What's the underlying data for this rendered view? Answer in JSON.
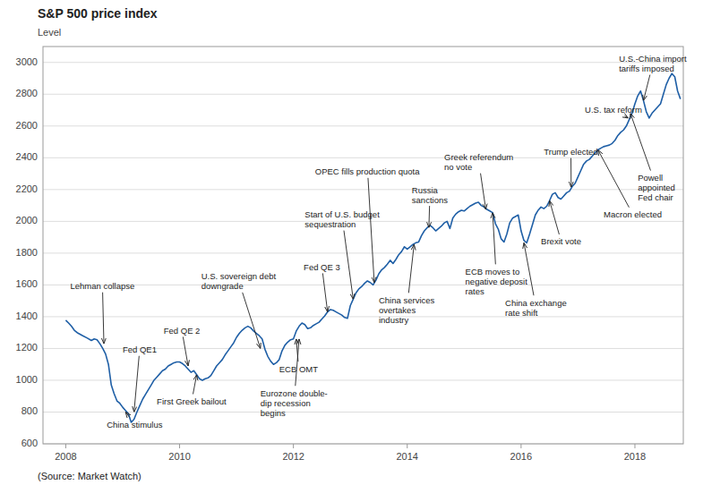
{
  "chart_data": {
    "type": "line",
    "title": "S&P 500 price index",
    "ylabel": "Level",
    "source": "(Source: Market Watch)",
    "xlim": [
      2007.6,
      2018.85
    ],
    "ylim": [
      600,
      3100
    ],
    "xticks": [
      2008,
      2010,
      2012,
      2014,
      2016,
      2018
    ],
    "yticks": [
      600,
      800,
      1000,
      1200,
      1400,
      1600,
      1800,
      2000,
      2200,
      2400,
      2600,
      2800,
      3000
    ],
    "grid": true,
    "color": "#1f5fa6",
    "x": [
      2008.0,
      2008.05,
      2008.1,
      2008.15,
      2008.2,
      2008.25,
      2008.3,
      2008.38,
      2008.45,
      2008.5,
      2008.55,
      2008.6,
      2008.65,
      2008.7,
      2008.75,
      2008.8,
      2008.85,
      2008.9,
      2008.95,
      2009.0,
      2009.05,
      2009.1,
      2009.15,
      2009.2,
      2009.25,
      2009.3,
      2009.35,
      2009.4,
      2009.45,
      2009.5,
      2009.55,
      2009.6,
      2009.65,
      2009.7,
      2009.75,
      2009.8,
      2009.85,
      2009.9,
      2009.95,
      2010.0,
      2010.05,
      2010.1,
      2010.15,
      2010.2,
      2010.25,
      2010.3,
      2010.35,
      2010.4,
      2010.45,
      2010.5,
      2010.55,
      2010.6,
      2010.65,
      2010.7,
      2010.75,
      2010.8,
      2010.85,
      2010.9,
      2010.95,
      2011.0,
      2011.05,
      2011.1,
      2011.15,
      2011.2,
      2011.25,
      2011.3,
      2011.35,
      2011.4,
      2011.45,
      2011.5,
      2011.55,
      2011.6,
      2011.65,
      2011.7,
      2011.75,
      2011.8,
      2011.85,
      2011.9,
      2011.95,
      2012.0,
      2012.05,
      2012.1,
      2012.15,
      2012.2,
      2012.25,
      2012.3,
      2012.35,
      2012.4,
      2012.45,
      2012.5,
      2012.55,
      2012.6,
      2012.65,
      2012.7,
      2012.75,
      2012.8,
      2012.85,
      2012.9,
      2012.95,
      2013.0,
      2013.05,
      2013.1,
      2013.15,
      2013.2,
      2013.25,
      2013.3,
      2013.35,
      2013.4,
      2013.45,
      2013.5,
      2013.55,
      2013.6,
      2013.65,
      2013.7,
      2013.75,
      2013.8,
      2013.85,
      2013.9,
      2013.95,
      2014.0,
      2014.05,
      2014.1,
      2014.15,
      2014.2,
      2014.25,
      2014.3,
      2014.35,
      2014.4,
      2014.45,
      2014.5,
      2014.55,
      2014.6,
      2014.65,
      2014.7,
      2014.75,
      2014.8,
      2014.85,
      2014.9,
      2014.95,
      2015.0,
      2015.05,
      2015.1,
      2015.15,
      2015.2,
      2015.25,
      2015.3,
      2015.35,
      2015.4,
      2015.45,
      2015.5,
      2015.55,
      2015.6,
      2015.65,
      2015.7,
      2015.75,
      2015.8,
      2015.85,
      2015.9,
      2015.95,
      2016.0,
      2016.05,
      2016.1,
      2016.15,
      2016.2,
      2016.25,
      2016.3,
      2016.35,
      2016.4,
      2016.45,
      2016.5,
      2016.55,
      2016.6,
      2016.65,
      2016.7,
      2016.75,
      2016.8,
      2016.85,
      2016.9,
      2016.95,
      2017.0,
      2017.05,
      2017.1,
      2017.15,
      2017.2,
      2017.25,
      2017.3,
      2017.35,
      2017.4,
      2017.45,
      2017.5,
      2017.55,
      2017.6,
      2017.65,
      2017.7,
      2017.75,
      2017.8,
      2017.85,
      2017.9,
      2017.95,
      2018.0,
      2018.05,
      2018.1,
      2018.15,
      2018.2,
      2018.25,
      2018.3,
      2018.35,
      2018.4,
      2018.45,
      2018.5,
      2018.55,
      2018.6,
      2018.65,
      2018.7,
      2018.75,
      2018.8
    ],
    "values": [
      1378,
      1360,
      1340,
      1315,
      1300,
      1290,
      1280,
      1265,
      1250,
      1260,
      1255,
      1230,
      1200,
      1165,
      1100,
      970,
      915,
      870,
      855,
      830,
      810,
      790,
      735,
      755,
      800,
      840,
      880,
      910,
      940,
      970,
      1000,
      1020,
      1040,
      1060,
      1070,
      1090,
      1100,
      1110,
      1115,
      1115,
      1105,
      1090,
      1070,
      1050,
      1060,
      1035,
      1010,
      1000,
      1010,
      1015,
      1030,
      1060,
      1090,
      1110,
      1130,
      1160,
      1185,
      1210,
      1235,
      1270,
      1295,
      1315,
      1330,
      1340,
      1330,
      1310,
      1295,
      1280,
      1260,
      1195,
      1150,
      1120,
      1100,
      1110,
      1130,
      1185,
      1220,
      1240,
      1255,
      1260,
      1310,
      1340,
      1360,
      1350,
      1325,
      1330,
      1345,
      1355,
      1365,
      1385,
      1405,
      1430,
      1445,
      1440,
      1430,
      1420,
      1410,
      1395,
      1390,
      1470,
      1510,
      1550,
      1575,
      1590,
      1610,
      1625,
      1615,
      1600,
      1630,
      1670,
      1695,
      1710,
      1730,
      1755,
      1735,
      1760,
      1790,
      1810,
      1840,
      1825,
      1840,
      1855,
      1865,
      1870,
      1910,
      1940,
      1960,
      1975,
      1960,
      1940,
      1955,
      1970,
      1990,
      2000,
      1955,
      2020,
      2045,
      2060,
      2070,
      2065,
      2080,
      2095,
      2105,
      2115,
      2120,
      2100,
      2090,
      2075,
      2065,
      2055,
      1985,
      1950,
      1890,
      1870,
      1920,
      1990,
      2020,
      2030,
      2040,
      1940,
      1880,
      1865,
      1920,
      1980,
      2040,
      2070,
      2090,
      2080,
      2095,
      2130,
      2170,
      2180,
      2150,
      2140,
      2160,
      2180,
      2190,
      2220,
      2240,
      2280,
      2320,
      2360,
      2380,
      2390,
      2410,
      2430,
      2450,
      2460,
      2470,
      2475,
      2480,
      2490,
      2510,
      2540,
      2560,
      2575,
      2600,
      2640,
      2680,
      2740,
      2790,
      2820,
      2760,
      2690,
      2650,
      2680,
      2700,
      2720,
      2740,
      2800,
      2860,
      2900,
      2930,
      2910,
      2820,
      2770
    ],
    "annotations": [
      {
        "label": "Lehman collapse",
        "x": 2008.67,
        "y": 1230,
        "text_x": 2008.08,
        "text_y": 1590
      },
      {
        "label": "China stimulus",
        "x": 2009.05,
        "y": 800,
        "text_x": 2008.72,
        "text_y": 720
      },
      {
        "label": "Fed QE1",
        "x": 2009.2,
        "y": 800,
        "text_x": 2009.0,
        "text_y": 1190
      },
      {
        "label": "Fed QE 2",
        "x": 2010.15,
        "y": 1090,
        "text_x": 2009.72,
        "text_y": 1310
      },
      {
        "label": "First Greek bailout",
        "x": 2010.3,
        "y": 1035,
        "text_x": 2009.6,
        "text_y": 865
      },
      {
        "label": "U.S. sovereign debt\ndowngrade",
        "x": 2011.42,
        "y": 1200,
        "text_x": 2010.38,
        "text_y": 1620
      },
      {
        "label": "Fed QE 3",
        "x": 2012.6,
        "y": 1430,
        "text_x": 2012.18,
        "text_y": 1710
      },
      {
        "label": "ECB OMT",
        "x": 2012.05,
        "y": 1260,
        "text_x": 2011.75,
        "text_y": 1070
      },
      {
        "label": "Eurozone double-\ndip recession\nbegins",
        "x": 2012.1,
        "y": 1260,
        "text_x": 2011.42,
        "text_y": 855
      },
      {
        "label": "OPEC fills production quota",
        "x": 2013.42,
        "y": 1615,
        "text_x": 2012.38,
        "text_y": 2310
      },
      {
        "label": "Start of U.S. budget\nsequestration",
        "x": 2013.05,
        "y": 1510,
        "text_x": 2012.2,
        "text_y": 2010
      },
      {
        "label": "China services\novertakes\nindustry",
        "x": 2014.12,
        "y": 1855,
        "text_x": 2013.5,
        "text_y": 1440
      },
      {
        "label": "Russia\nsanctions",
        "x": 2014.38,
        "y": 1960,
        "text_x": 2014.08,
        "text_y": 2165
      },
      {
        "label": "Greek referendum\nno vote",
        "x": 2015.38,
        "y": 2075,
        "text_x": 2014.65,
        "text_y": 2370
      },
      {
        "label": "ECB moves to\nnegative deposit\nrates",
        "x": 2015.5,
        "y": 2055,
        "text_x": 2015.02,
        "text_y": 1620
      },
      {
        "label": "Trump elected",
        "x": 2016.88,
        "y": 2215,
        "text_x": 2016.4,
        "text_y": 2435
      },
      {
        "label": "China exchange\nrate shift",
        "x": 2016.05,
        "y": 1865,
        "text_x": 2015.72,
        "text_y": 1590
      },
      {
        "label": "Brexit vote",
        "x": 2016.5,
        "y": 2130,
        "text_x": 2016.35,
        "text_y": 1870
      },
      {
        "label": "U.S. tax reform",
        "x": 2017.88,
        "y": 2650,
        "text_x": 2017.12,
        "text_y": 2700
      },
      {
        "label": "Macron elected",
        "x": 2017.35,
        "y": 2450,
        "text_x": 2017.45,
        "text_y": 2040
      },
      {
        "label": "Powell\nappointed\nFed chair",
        "x": 2017.92,
        "y": 2680,
        "text_x": 2018.05,
        "text_y": 2210
      },
      {
        "label": "U.S.-China import\ntariffs imposed",
        "x": 2018.15,
        "y": 2760,
        "text_x": 2017.72,
        "text_y": 2990
      }
    ]
  }
}
